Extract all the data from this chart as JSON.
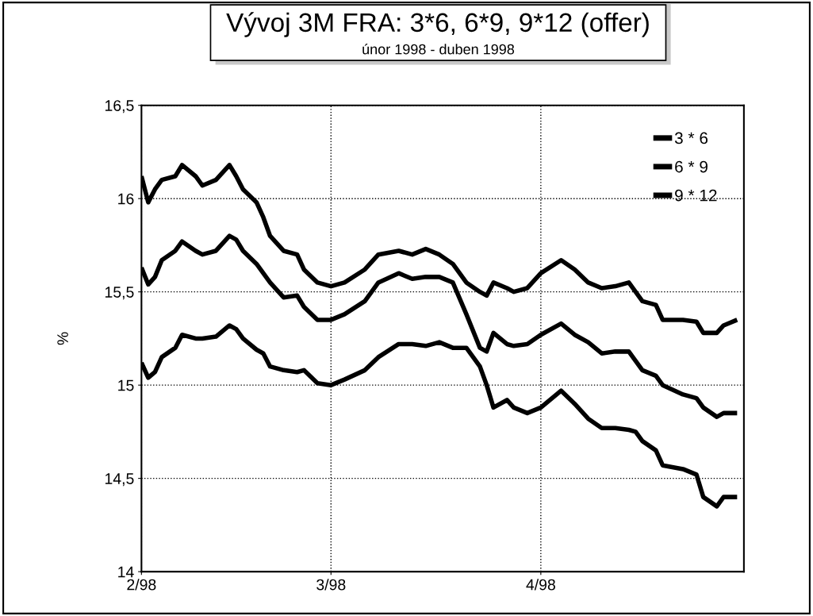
{
  "chart_data": {
    "type": "line",
    "title": "Vývoj 3M FRA: 3*6, 6*9, 9*12 (offer)",
    "subtitle": "únor 1998 - duben 1998",
    "ylabel": "%",
    "x": [
      "1998-02-01",
      "1998-02-02",
      "1998-02-03",
      "1998-02-04",
      "1998-02-06",
      "1998-02-07",
      "1998-02-09",
      "1998-02-10",
      "1998-02-12",
      "1998-02-14",
      "1998-02-15",
      "1998-02-16",
      "1998-02-18",
      "1998-02-19",
      "1998-02-20",
      "1998-02-22",
      "1998-02-24",
      "1998-02-25",
      "1998-02-27",
      "1998-03-01",
      "1998-03-03",
      "1998-03-06",
      "1998-03-08",
      "1998-03-11",
      "1998-03-13",
      "1998-03-15",
      "1998-03-17",
      "1998-03-19",
      "1998-03-21",
      "1998-03-23",
      "1998-03-24",
      "1998-03-25",
      "1998-03-27",
      "1998-03-28",
      "1998-03-30",
      "1998-04-01",
      "1998-04-04",
      "1998-04-06",
      "1998-04-08",
      "1998-04-10",
      "1998-04-12",
      "1998-04-14",
      "1998-04-15",
      "1998-04-16",
      "1998-04-18",
      "1998-04-19",
      "1998-04-22",
      "1998-04-24",
      "1998-04-25",
      "1998-04-27",
      "1998-04-28",
      "1998-04-30"
    ],
    "series": [
      {
        "name": "3 * 6",
        "color": "#000000",
        "values": [
          16.12,
          15.98,
          16.05,
          16.1,
          16.12,
          16.18,
          16.12,
          16.07,
          16.1,
          16.18,
          16.12,
          16.05,
          15.98,
          15.9,
          15.8,
          15.72,
          15.7,
          15.62,
          15.55,
          15.53,
          15.55,
          15.62,
          15.7,
          15.72,
          15.7,
          15.73,
          15.7,
          15.65,
          15.55,
          15.5,
          15.48,
          15.55,
          15.52,
          15.5,
          15.52,
          15.6,
          15.67,
          15.62,
          15.55,
          15.52,
          15.53,
          15.55,
          15.5,
          15.45,
          15.43,
          15.35,
          15.35,
          15.34,
          15.28,
          15.28,
          15.32,
          15.35
        ]
      },
      {
        "name": "6 * 9",
        "color": "#000000",
        "values": [
          15.63,
          15.54,
          15.58,
          15.67,
          15.72,
          15.77,
          15.72,
          15.7,
          15.72,
          15.8,
          15.78,
          15.72,
          15.65,
          15.6,
          15.55,
          15.47,
          15.48,
          15.42,
          15.35,
          15.35,
          15.38,
          15.45,
          15.55,
          15.6,
          15.57,
          15.58,
          15.58,
          15.55,
          15.38,
          15.2,
          15.18,
          15.28,
          15.22,
          15.21,
          15.22,
          15.27,
          15.33,
          15.27,
          15.23,
          15.17,
          15.18,
          15.18,
          15.13,
          15.08,
          15.05,
          15.0,
          14.95,
          14.93,
          14.88,
          14.83,
          14.85,
          14.85
        ]
      },
      {
        "name": "9 * 12",
        "color": "#000000",
        "values": [
          15.12,
          15.04,
          15.07,
          15.15,
          15.2,
          15.27,
          15.25,
          15.25,
          15.26,
          15.32,
          15.3,
          15.25,
          15.19,
          15.17,
          15.1,
          15.08,
          15.07,
          15.08,
          15.01,
          15.0,
          15.03,
          15.08,
          15.15,
          15.22,
          15.22,
          15.21,
          15.23,
          15.2,
          15.2,
          15.1,
          15.0,
          14.88,
          14.92,
          14.88,
          14.85,
          14.88,
          14.97,
          14.9,
          14.82,
          14.77,
          14.77,
          14.76,
          14.75,
          14.7,
          14.65,
          14.57,
          14.55,
          14.52,
          14.4,
          14.35,
          14.4,
          14.4
        ]
      }
    ],
    "xlim": [
      "1998-02-01",
      "1998-05-01"
    ],
    "xticks": [
      {
        "value": "1998-02-01",
        "label": "2/98"
      },
      {
        "value": "1998-03-01",
        "label": "3/98"
      },
      {
        "value": "1998-04-01",
        "label": "4/98"
      }
    ],
    "ylim": [
      14,
      16.5
    ],
    "yticks": [
      {
        "value": 14,
        "label": "14"
      },
      {
        "value": 14.5,
        "label": "14,5"
      },
      {
        "value": 15,
        "label": "15"
      },
      {
        "value": 15.5,
        "label": "15,5"
      },
      {
        "value": 16,
        "label": "16"
      },
      {
        "value": 16.5,
        "label": "16,5"
      }
    ],
    "grid": true,
    "legend": "top right",
    "line_style": "solid",
    "marker": "none"
  }
}
